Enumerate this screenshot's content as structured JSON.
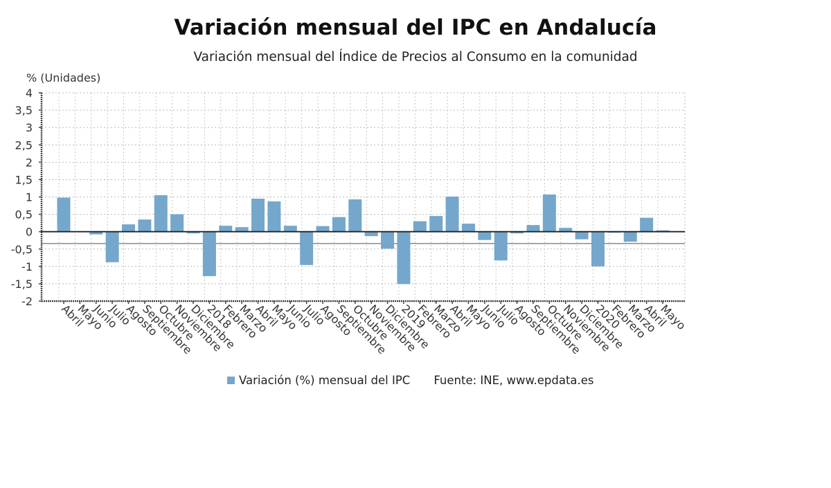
{
  "chart_data": {
    "type": "bar",
    "title": "Variación mensual del IPC en Andalucía",
    "subtitle": "Variación mensual del Índice de Precios al Consumo en la comunidad",
    "ylabel": "% (Unidades)",
    "xlabel": "",
    "ylim": [
      -2,
      4
    ],
    "yticks": [
      4,
      3.5,
      3,
      2.5,
      2,
      1.5,
      1,
      0.5,
      0,
      -0.5,
      -1,
      -1.5,
      -2
    ],
    "ytick_labels": [
      "4",
      "3,5",
      "3",
      "2,5",
      "2",
      "1,5",
      "1",
      "0,5",
      "0",
      "-0,5",
      "-1",
      "-1,5",
      "-2"
    ],
    "reference_line": -0.34,
    "grid": true,
    "categories": [
      "Abril",
      "Mayo",
      "Junio",
      "Julio",
      "Agosto",
      "Septiembre",
      "Octubre",
      "Noviembre",
      "Diciembre",
      "2018",
      "Febrero",
      "Marzo",
      "Abril",
      "Mayo",
      "Junio",
      "Julio",
      "Agosto",
      "Septiembre",
      "Octubre",
      "Noviembre",
      "Diciembre",
      "2019",
      "Febrero",
      "Marzo",
      "Abril",
      "Mayo",
      "Junio",
      "Julio",
      "Agosto",
      "Septiembre",
      "Octubre",
      "Noviembre",
      "Diciembre",
      "2020",
      "Febrero",
      "Marzo",
      "Abril",
      "Mayo"
    ],
    "series": [
      {
        "name": "Variación (%) mensual del IPC",
        "color": "#74a7cb",
        "values": [
          0.98,
          0.0,
          -0.08,
          -0.88,
          0.21,
          0.35,
          1.05,
          0.5,
          -0.05,
          -1.28,
          0.17,
          0.13,
          0.95,
          0.87,
          0.17,
          -0.96,
          0.16,
          0.42,
          0.93,
          -0.13,
          -0.49,
          -1.51,
          0.3,
          0.45,
          1.01,
          0.23,
          -0.24,
          -0.83,
          -0.05,
          0.19,
          1.07,
          0.11,
          -0.22,
          -1.0,
          -0.03,
          -0.29,
          0.4,
          0.04
        ]
      }
    ],
    "legend": {
      "position": "bottom",
      "label": "Variación (%) mensual del IPC",
      "source": "Fuente: INE, www.epdata.es"
    }
  }
}
